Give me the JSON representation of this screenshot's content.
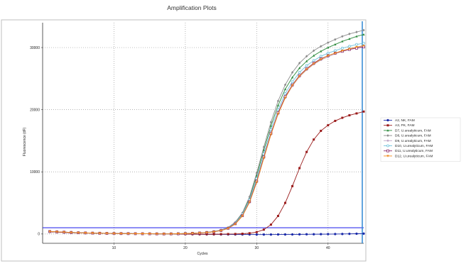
{
  "chart_data": {
    "type": "line",
    "title": "Amplification Plots",
    "xlabel": "Cycles",
    "ylabel": "Fluorescence (dF)",
    "xlim": [
      0,
      45
    ],
    "ylim": [
      -1500,
      34000
    ],
    "x_ticks": [
      10,
      20,
      30,
      40
    ],
    "y_ticks": [
      0,
      10000,
      20000,
      30000
    ],
    "grid": true,
    "legend_position": "right",
    "threshold": {
      "value": 1000,
      "color": "#3333ee"
    },
    "end_marker": {
      "x": 44.8,
      "color": "#3b8fd6"
    },
    "x": [
      1,
      2,
      3,
      4,
      5,
      6,
      7,
      8,
      9,
      10,
      11,
      12,
      13,
      14,
      15,
      16,
      17,
      18,
      19,
      20,
      21,
      22,
      23,
      24,
      25,
      26,
      27,
      28,
      29,
      30,
      31,
      32,
      33,
      34,
      35,
      36,
      37,
      38,
      39,
      40,
      41,
      42,
      43,
      44,
      45
    ],
    "series": [
      {
        "name": "A2, NK, FAM",
        "color": "#1a2aa8",
        "marker": "circle-filled",
        "values": [
          350,
          300,
          250,
          200,
          180,
          150,
          130,
          110,
          90,
          80,
          70,
          60,
          50,
          40,
          30,
          20,
          10,
          0,
          -20,
          -30,
          -40,
          -50,
          -60,
          -60,
          -70,
          -70,
          -80,
          -80,
          -80,
          -90,
          -90,
          -90,
          -80,
          -80,
          -70,
          -60,
          -50,
          -40,
          -30,
          -20,
          -10,
          0,
          20,
          40,
          60
        ]
      },
      {
        "name": "A3, PK, FAM",
        "color": "#9a1b1b",
        "marker": "square-filled",
        "values": [
          350,
          300,
          250,
          200,
          180,
          150,
          130,
          110,
          90,
          80,
          70,
          60,
          50,
          40,
          30,
          20,
          10,
          0,
          -10,
          -20,
          -20,
          -30,
          -30,
          -30,
          -20,
          -10,
          0,
          40,
          120,
          300,
          700,
          1500,
          2900,
          5000,
          7700,
          10600,
          13200,
          15200,
          16600,
          17500,
          18200,
          18700,
          19100,
          19400,
          19700
        ]
      },
      {
        "name": "D7, U.urealyticum, FAM",
        "color": "#2e8b3e",
        "marker": "triangle-filled",
        "values": [
          400,
          350,
          300,
          250,
          200,
          170,
          140,
          120,
          100,
          80,
          70,
          60,
          50,
          40,
          30,
          20,
          10,
          20,
          40,
          80,
          120,
          180,
          260,
          400,
          620,
          1000,
          1800,
          3300,
          5800,
          9400,
          13500,
          17400,
          20700,
          23300,
          25200,
          26700,
          27800,
          28700,
          29400,
          30000,
          30500,
          31000,
          31400,
          31800,
          32100
        ]
      },
      {
        "name": "D8, U.urealyticum, FAM",
        "color": "#8c8c8c",
        "marker": "diamond-filled",
        "values": [
          400,
          350,
          300,
          250,
          200,
          170,
          140,
          120,
          100,
          80,
          70,
          60,
          50,
          40,
          30,
          20,
          10,
          20,
          40,
          80,
          120,
          180,
          260,
          400,
          640,
          1050,
          1900,
          3400,
          6000,
          9800,
          14000,
          18000,
          21400,
          24000,
          26000,
          27500,
          28600,
          29500,
          30200,
          30800,
          31300,
          31800,
          32200,
          32500,
          32800
        ]
      },
      {
        "name": "D9, U.urealyticum, FAM",
        "color": "#bfa6c6",
        "marker": "star",
        "values": [
          400,
          350,
          300,
          250,
          200,
          170,
          140,
          120,
          100,
          80,
          70,
          60,
          50,
          40,
          30,
          20,
          10,
          20,
          40,
          70,
          110,
          160,
          230,
          350,
          540,
          880,
          1600,
          2900,
          5100,
          8300,
          12200,
          16000,
          19300,
          21900,
          23800,
          25300,
          26400,
          27300,
          28000,
          28500,
          29000,
          29400,
          29700,
          30000,
          30200
        ]
      },
      {
        "name": "D10, U.urealyticum, FAM",
        "color": "#6fc2dc",
        "marker": "circle-open",
        "values": [
          400,
          350,
          300,
          250,
          200,
          170,
          140,
          120,
          100,
          80,
          70,
          60,
          50,
          40,
          30,
          20,
          10,
          20,
          40,
          80,
          120,
          170,
          250,
          380,
          600,
          970,
          1750,
          3150,
          5500,
          8900,
          12900,
          16800,
          20000,
          22600,
          24500,
          26000,
          27100,
          27900,
          28600,
          29100,
          29500,
          29900,
          30200,
          30500,
          30700
        ]
      },
      {
        "name": "D11, U.urealyticum, FAM",
        "color": "#8a2a6a",
        "marker": "square-open",
        "values": [
          400,
          350,
          300,
          250,
          200,
          170,
          140,
          120,
          100,
          80,
          70,
          60,
          50,
          40,
          30,
          20,
          10,
          20,
          40,
          70,
          110,
          160,
          240,
          360,
          560,
          920,
          1650,
          2950,
          5200,
          8500,
          12400,
          16200,
          19500,
          22100,
          24000,
          25500,
          26600,
          27500,
          28200,
          28700,
          29100,
          29400,
          29700,
          29900,
          30100
        ]
      },
      {
        "name": "D12, U.urealyticum, FAM",
        "color": "#f08a1c",
        "marker": "triangle-down-filled",
        "values": [
          400,
          350,
          300,
          250,
          200,
          170,
          140,
          120,
          100,
          80,
          70,
          60,
          50,
          40,
          30,
          20,
          10,
          20,
          40,
          70,
          110,
          160,
          230,
          350,
          550,
          900,
          1600,
          2900,
          5100,
          8300,
          12200,
          16000,
          19300,
          21900,
          23900,
          25400,
          26500,
          27400,
          28100,
          28700,
          29100,
          29500,
          29800,
          30100,
          30300
        ]
      }
    ]
  }
}
